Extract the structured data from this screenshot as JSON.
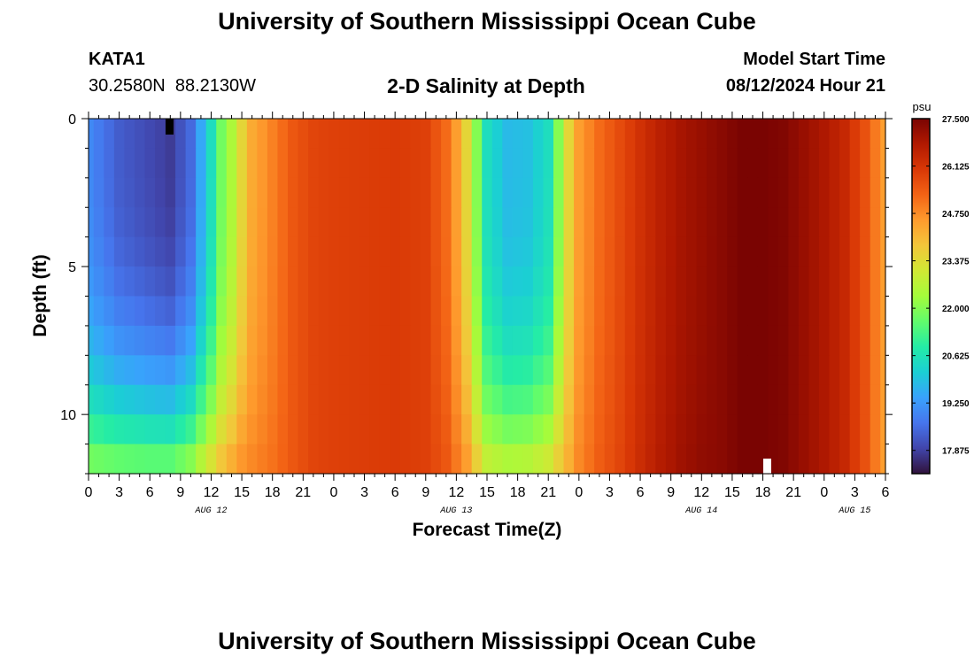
{
  "page": {
    "title": "University of Southern Mississippi Ocean Cube",
    "footer_title": "University of Southern Mississippi Ocean Cube",
    "station": {
      "id": "KATA1",
      "coords": "30.2580N  88.2130W"
    },
    "model_start": {
      "label": "Model Start Time",
      "value": "08/12/2024 Hour 21"
    }
  },
  "chart_data": {
    "type": "heatmap",
    "title": "2-D Salinity at Depth",
    "xlabel": "Forecast Time(Z)",
    "ylabel": "Depth (ft)",
    "units": "psu",
    "x_range_hours": [
      0,
      78
    ],
    "y_range_ft": [
      0,
      12
    ],
    "y_inverted": true,
    "y_ticks": [
      "0",
      "5",
      "10"
    ],
    "x_ticks": [
      "0",
      "3",
      "6",
      "9",
      "12",
      "15",
      "18",
      "21",
      "0",
      "3",
      "6",
      "9",
      "12",
      "15",
      "18",
      "21",
      "0",
      "3",
      "6",
      "9",
      "12",
      "15",
      "18",
      "21",
      "0",
      "3",
      "6"
    ],
    "date_labels": [
      {
        "text": "AUG 12",
        "hour": 12
      },
      {
        "text": "AUG 13",
        "hour": 36
      },
      {
        "text": "AUG 14",
        "hour": 60
      },
      {
        "text": "AUG 15",
        "hour": 75
      }
    ],
    "colorbar": {
      "min": 17.2,
      "max": 27.5,
      "tick_labels": [
        "27.500",
        "26.125",
        "24.750",
        "23.375",
        "22.000",
        "20.625",
        "19.250",
        "17.875"
      ],
      "colors": [
        "#30123b",
        "#4145ab",
        "#4675ed",
        "#39a2fc",
        "#1bcfd4",
        "#24eca6",
        "#61fc6c",
        "#a4fc3b",
        "#d1e834",
        "#f3c63a",
        "#fe9b2d",
        "#f36315",
        "#d93806",
        "#b11901",
        "#7a0402"
      ]
    },
    "grid": false,
    "salinity_model": {
      "surface_psu_by_hour": [
        [
          0,
          19.0
        ],
        [
          3,
          18.3
        ],
        [
          6,
          18.0
        ],
        [
          8,
          17.8
        ],
        [
          10,
          18.5
        ],
        [
          11,
          19.5
        ],
        [
          12,
          20.5
        ],
        [
          13,
          21.8
        ],
        [
          14,
          22.5
        ],
        [
          15,
          23.5
        ],
        [
          16,
          24.3
        ],
        [
          18,
          24.9
        ],
        [
          20,
          25.5
        ],
        [
          22,
          25.8
        ],
        [
          24,
          25.9
        ],
        [
          30,
          26.0
        ],
        [
          33,
          25.9
        ],
        [
          35,
          25.2
        ],
        [
          36,
          24.5
        ],
        [
          37,
          23.5
        ],
        [
          38,
          22.0
        ],
        [
          39,
          20.5
        ],
        [
          41,
          19.8
        ],
        [
          43,
          19.9
        ],
        [
          45,
          20.5
        ],
        [
          46,
          22.0
        ],
        [
          47,
          23.5
        ],
        [
          48,
          24.5
        ],
        [
          50,
          25.2
        ],
        [
          52,
          25.7
        ],
        [
          54,
          26.2
        ],
        [
          56,
          26.6
        ],
        [
          58,
          26.9
        ],
        [
          60,
          27.1
        ],
        [
          62,
          27.3
        ],
        [
          64,
          27.5
        ],
        [
          66,
          27.5
        ],
        [
          68,
          27.4
        ],
        [
          70,
          27.1
        ],
        [
          72,
          26.8
        ],
        [
          74,
          26.4
        ],
        [
          76,
          25.6
        ],
        [
          77,
          25.0
        ],
        [
          78,
          24.5
        ]
      ],
      "bottom_psu_by_hour": [
        [
          0,
          21.8
        ],
        [
          3,
          21.6
        ],
        [
          6,
          21.5
        ],
        [
          8,
          21.5
        ],
        [
          10,
          22.0
        ],
        [
          11,
          22.6
        ],
        [
          12,
          23.2
        ],
        [
          13,
          23.8
        ],
        [
          14,
          24.2
        ],
        [
          15,
          24.6
        ],
        [
          16,
          24.8
        ],
        [
          18,
          25.1
        ],
        [
          20,
          25.5
        ],
        [
          22,
          25.8
        ],
        [
          24,
          25.9
        ],
        [
          30,
          26.0
        ],
        [
          33,
          25.9
        ],
        [
          35,
          25.5
        ],
        [
          36,
          25.0
        ],
        [
          37,
          24.5
        ],
        [
          38,
          23.6
        ],
        [
          39,
          22.8
        ],
        [
          41,
          22.5
        ],
        [
          43,
          22.6
        ],
        [
          45,
          23.0
        ],
        [
          46,
          23.6
        ],
        [
          47,
          24.2
        ],
        [
          48,
          24.8
        ],
        [
          50,
          25.4
        ],
        [
          52,
          25.8
        ],
        [
          54,
          26.3
        ],
        [
          56,
          26.7
        ],
        [
          58,
          27.0
        ],
        [
          60,
          27.2
        ],
        [
          62,
          27.3
        ],
        [
          64,
          27.5
        ],
        [
          66,
          27.5
        ],
        [
          68,
          27.4
        ],
        [
          70,
          27.1
        ],
        [
          72,
          26.8
        ],
        [
          74,
          26.4
        ],
        [
          76,
          25.6
        ],
        [
          77,
          25.0
        ],
        [
          78,
          24.5
        ]
      ],
      "depth_blend_exponent": 3
    }
  }
}
